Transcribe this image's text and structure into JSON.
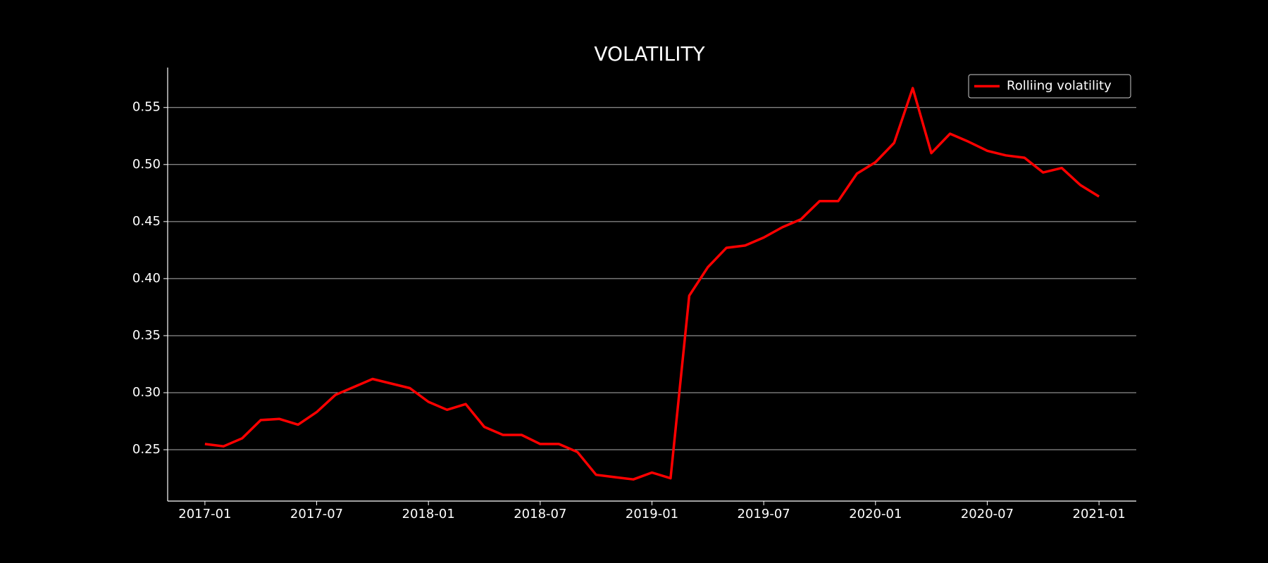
{
  "chart_data": {
    "type": "line",
    "title": "VOLATILITY",
    "x": [
      "2017-01",
      "2017-02",
      "2017-03",
      "2017-04",
      "2017-05",
      "2017-06",
      "2017-07",
      "2017-08",
      "2017-09",
      "2017-10",
      "2017-11",
      "2017-12",
      "2018-01",
      "2018-02",
      "2018-03",
      "2018-04",
      "2018-05",
      "2018-06",
      "2018-07",
      "2018-08",
      "2018-09",
      "2018-10",
      "2018-11",
      "2018-12",
      "2019-01",
      "2019-02",
      "2019-03",
      "2019-04",
      "2019-05",
      "2019-06",
      "2019-07",
      "2019-08",
      "2019-09",
      "2019-10",
      "2019-11",
      "2019-12",
      "2020-01",
      "2020-02",
      "2020-03",
      "2020-04",
      "2020-05",
      "2020-06",
      "2020-07",
      "2020-08",
      "2020-09",
      "2020-10",
      "2020-11",
      "2020-12",
      "2021-01"
    ],
    "series": [
      {
        "name": "Rolliing volatility",
        "color": "#ff0000",
        "values": [
          0.255,
          0.253,
          0.26,
          0.276,
          0.277,
          0.272,
          0.283,
          0.298,
          0.305,
          0.312,
          0.308,
          0.304,
          0.292,
          0.285,
          0.29,
          0.27,
          0.263,
          0.263,
          0.255,
          0.255,
          0.248,
          0.228,
          0.226,
          0.224,
          0.23,
          0.225,
          0.385,
          0.41,
          0.427,
          0.429,
          0.436,
          0.445,
          0.452,
          0.468,
          0.468,
          0.492,
          0.502,
          0.519,
          0.567,
          0.51,
          0.527,
          0.52,
          0.512,
          0.508,
          0.506,
          0.493,
          0.497,
          0.482,
          0.472
        ]
      }
    ],
    "xlim": [
      "2016-11",
      "2021-03"
    ],
    "xticks": [
      "2017-01",
      "2017-07",
      "2018-01",
      "2018-07",
      "2019-01",
      "2019-07",
      "2020-01",
      "2020-07",
      "2021-01"
    ],
    "ylim": [
      0.205,
      0.585
    ],
    "yticks": [
      0.25,
      {
        "value": 0.3,
        "label": "0.30"
      },
      0.35,
      {
        "value": 0.4,
        "label": "0.40"
      },
      0.45,
      {
        "value": 0.5,
        "label": "0.50"
      },
      0.55
    ],
    "grid": true,
    "legend": "upper right"
  }
}
